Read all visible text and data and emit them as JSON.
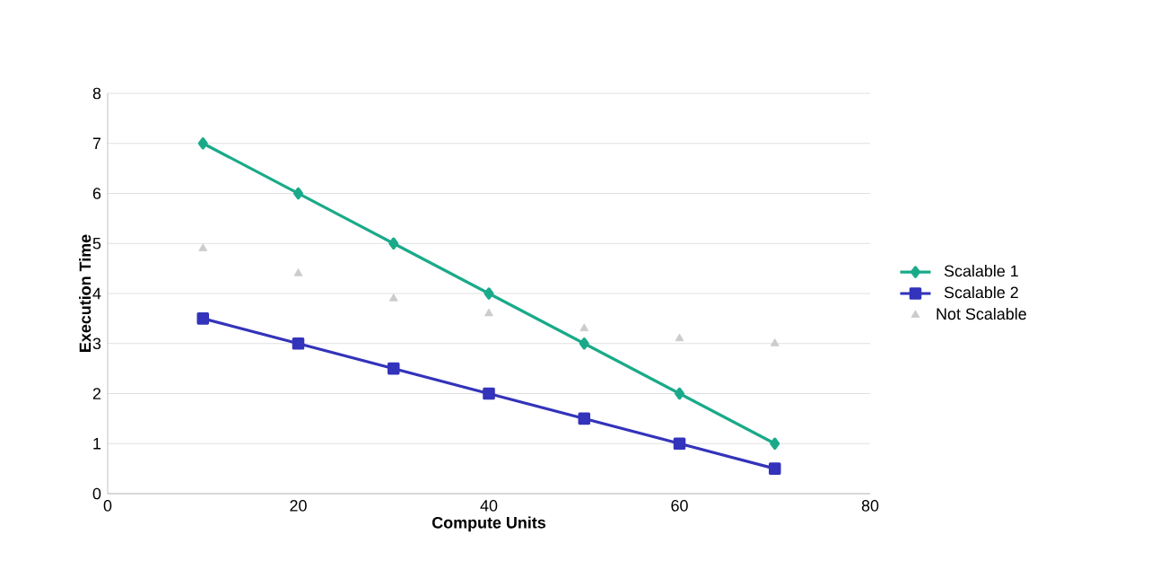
{
  "chart_data": {
    "type": "line",
    "xlabel": "Compute Units",
    "ylabel": "Execution Time",
    "x": [
      10,
      20,
      30,
      40,
      50,
      60,
      70
    ],
    "xlim": [
      0,
      80
    ],
    "xticks": [
      0,
      20,
      40,
      60,
      80
    ],
    "ylim": [
      0,
      8
    ],
    "yticks": [
      0,
      1,
      2,
      3,
      4,
      5,
      6,
      7,
      8
    ],
    "grid": "y",
    "legend": "right",
    "series": [
      {
        "name": "Scalable 1",
        "color": "#1aaa8a",
        "marker": "diamond",
        "values": [
          7,
          6,
          5,
          4,
          3,
          2,
          1
        ]
      },
      {
        "name": "Scalable 2",
        "color": "#3333bb",
        "marker": "square",
        "values": [
          3.5,
          3,
          2.5,
          2,
          1.5,
          1,
          0.5
        ]
      },
      {
        "name": "Not Scalable",
        "type": "scatter",
        "color": "#cccccc",
        "marker": "triangle",
        "values": [
          4.9,
          4.4,
          3.9,
          3.6,
          3.3,
          3.1,
          3.0
        ]
      }
    ]
  }
}
